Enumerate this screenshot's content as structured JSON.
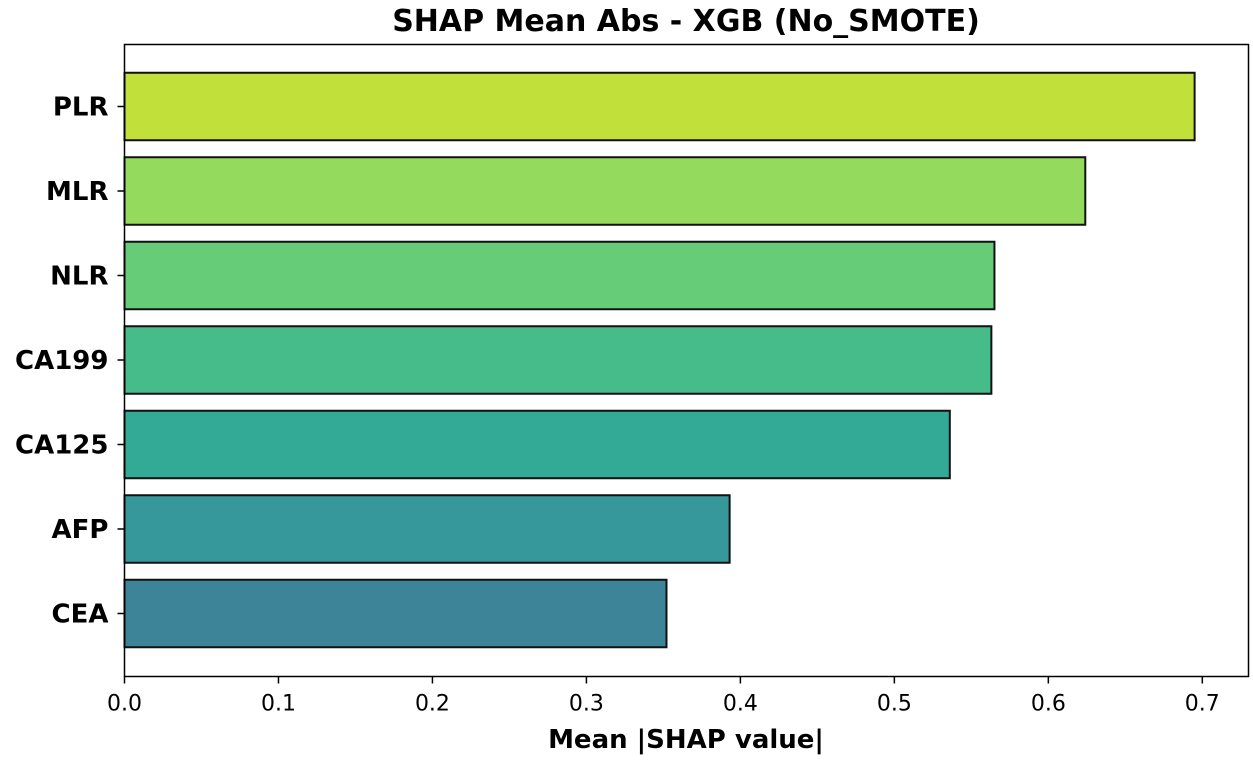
{
  "chart_data": {
    "type": "bar",
    "orientation": "horizontal",
    "title": "SHAP Mean Abs - XGB (No_SMOTE)",
    "xlabel": "Mean |SHAP value|",
    "ylabel": "",
    "categories": [
      "PLR",
      "MLR",
      "NLR",
      "CA199",
      "CA125",
      "AFP",
      "CEA"
    ],
    "values": [
      0.695,
      0.624,
      0.565,
      0.563,
      0.536,
      0.393,
      0.352
    ],
    "colors": [
      "#c2e03a",
      "#94da5c",
      "#66cc77",
      "#45bc8a",
      "#33aa95",
      "#37989c",
      "#3e8499"
    ],
    "xlim": [
      0,
      0.73
    ],
    "xticks": [
      "0.0",
      "0.1",
      "0.2",
      "0.3",
      "0.4",
      "0.5",
      "0.6",
      "0.7"
    ],
    "grid": false,
    "legend": "none"
  }
}
